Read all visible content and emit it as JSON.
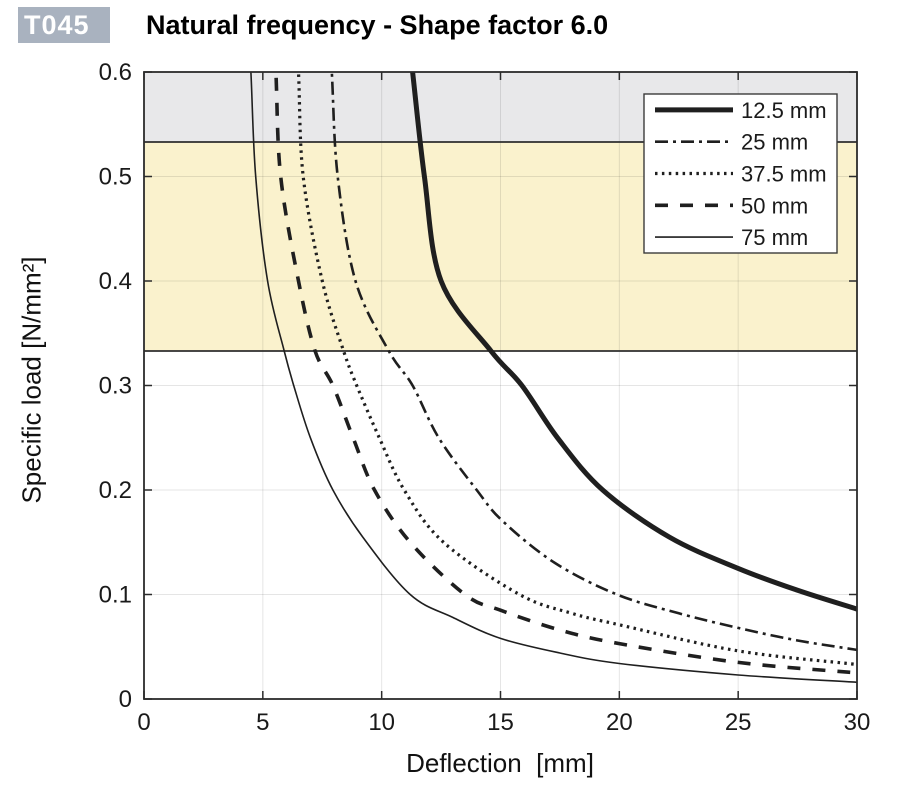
{
  "chart_data": {
    "type": "line",
    "badge": "T045",
    "title": "Natural frequency - Shape factor 6.0",
    "xlabel": "Deflection  [mm]",
    "ylabel": "Specific load [N/mm²]",
    "xlim": [
      0,
      30
    ],
    "ylim": [
      0,
      0.6
    ],
    "x_ticks": [
      0,
      5,
      10,
      15,
      20,
      25,
      30
    ],
    "y_ticks": [
      0,
      0.1,
      0.2,
      0.3,
      0.4,
      0.5,
      0.6
    ],
    "grid": true,
    "legend_position": "top-right",
    "colors": {
      "badge_bg": "#a9b2bf",
      "curve": "#1f1f1f",
      "band_gray": "#e8e8ea",
      "band_yellow": "#faf2cd",
      "band_edge": "#2e2e2e",
      "axis": "#2b2b2b"
    },
    "bands": [
      {
        "name": "band-gray",
        "y_from": 0.533,
        "y_to": 0.6,
        "fill": "#e8e8ea"
      },
      {
        "name": "band-yellow",
        "y_from": 0.333,
        "y_to": 0.533,
        "fill": "#faf2cd"
      }
    ],
    "series": [
      {
        "name": "12.5 mm",
        "style": "solid-thick",
        "points": [
          [
            11.3,
            0.6
          ],
          [
            11.8,
            0.5
          ],
          [
            12.5,
            0.4
          ],
          [
            14.6,
            0.333
          ],
          [
            15.9,
            0.3
          ],
          [
            17.4,
            0.25
          ],
          [
            19.3,
            0.2
          ],
          [
            22.1,
            0.155
          ],
          [
            25,
            0.125
          ],
          [
            27.5,
            0.104
          ],
          [
            30,
            0.086
          ]
        ]
      },
      {
        "name": "25 mm",
        "style": "dash-dot",
        "points": [
          [
            7.9,
            0.6
          ],
          [
            8.15,
            0.5
          ],
          [
            8.9,
            0.4
          ],
          [
            10.3,
            0.333
          ],
          [
            11.3,
            0.3
          ],
          [
            12.4,
            0.25
          ],
          [
            14.0,
            0.2
          ],
          [
            15.1,
            0.17
          ],
          [
            17.3,
            0.13
          ],
          [
            19.9,
            0.1
          ],
          [
            22.5,
            0.082
          ],
          [
            25,
            0.068
          ],
          [
            27.5,
            0.056
          ],
          [
            30,
            0.047
          ]
        ]
      },
      {
        "name": "37.5 mm",
        "style": "dotted",
        "points": [
          [
            6.5,
            0.6
          ],
          [
            6.7,
            0.5
          ],
          [
            7.5,
            0.4
          ],
          [
            8.4,
            0.333
          ],
          [
            8.95,
            0.3
          ],
          [
            9.9,
            0.25
          ],
          [
            10.95,
            0.2
          ],
          [
            12.6,
            0.15
          ],
          [
            15.8,
            0.1
          ],
          [
            18,
            0.082
          ],
          [
            20,
            0.071
          ],
          [
            25,
            0.046
          ],
          [
            30,
            0.033
          ]
        ]
      },
      {
        "name": "50 mm",
        "style": "dashed",
        "points": [
          [
            5.55,
            0.6
          ],
          [
            5.75,
            0.5
          ],
          [
            6.5,
            0.4
          ],
          [
            7.2,
            0.333
          ],
          [
            7.95,
            0.3
          ],
          [
            8.8,
            0.25
          ],
          [
            9.7,
            0.2
          ],
          [
            11.2,
            0.15
          ],
          [
            13.5,
            0.1
          ],
          [
            15,
            0.085
          ],
          [
            17.5,
            0.066
          ],
          [
            20,
            0.053
          ],
          [
            25,
            0.035
          ],
          [
            30,
            0.025
          ]
        ]
      },
      {
        "name": "75 mm",
        "style": "solid-thin",
        "points": [
          [
            4.5,
            0.6
          ],
          [
            4.7,
            0.5
          ],
          [
            5.2,
            0.4
          ],
          [
            5.9,
            0.333
          ],
          [
            6.3,
            0.3
          ],
          [
            7.0,
            0.25
          ],
          [
            7.95,
            0.2
          ],
          [
            9.2,
            0.155
          ],
          [
            11.2,
            0.1
          ],
          [
            13,
            0.078
          ],
          [
            15,
            0.058
          ],
          [
            17.5,
            0.044
          ],
          [
            20,
            0.034
          ],
          [
            25,
            0.023
          ],
          [
            30,
            0.016
          ]
        ]
      }
    ]
  }
}
